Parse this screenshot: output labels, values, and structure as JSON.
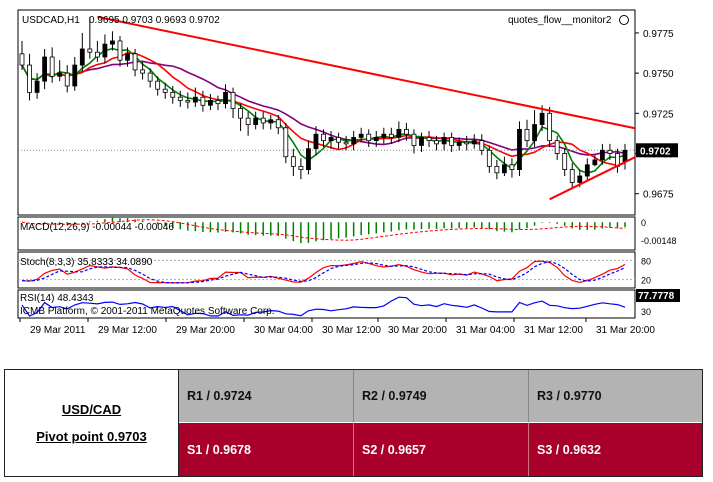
{
  "header": {
    "symbol": "USDCAD,H1",
    "ohlc": "0.9695 0.9703 0.9693 0.9702",
    "indicator_label": "quotes_flow__monitor2",
    "copyright": "ICMB Platform, © 2001-2011 MetaQuotes Software Corp."
  },
  "colors": {
    "bull": "#000000",
    "bear": "#ffffff",
    "ma_fast": "#008000",
    "ma_mid": "#ff0000",
    "ma_slow": "#800080",
    "trendline": "#ff0000",
    "macd": "#008000",
    "signal": "#ff0000",
    "stoch_k": "#ff0000",
    "stoch_d": "#0000ff",
    "rsi": "#0000ff",
    "s_bg": "#a8002b",
    "r_bg": "#b3b3b3"
  },
  "chart_data": [
    {
      "type": "candlestick",
      "title": "USDCAD,H1",
      "x_ticks": [
        "29 Mar 2011",
        "29 Mar 12:00",
        "29 Mar 20:00",
        "30 Mar 04:00",
        "30 Mar 12:00",
        "30 Mar 20:00",
        "31 Mar 04:00",
        "31 Mar 12:00",
        "31 Mar 20:00"
      ],
      "y_ticks": [
        "0.9775",
        "0.9750",
        "0.9725",
        "0.9700",
        "0.9675"
      ],
      "ylim": [
        0.9663,
        0.9788
      ],
      "current_price": "0.9702",
      "close": [
        0.9755,
        0.9738,
        0.9745,
        0.976,
        0.9748,
        0.975,
        0.9742,
        0.9755,
        0.9765,
        0.9763,
        0.976,
        0.9768,
        0.977,
        0.9758,
        0.9762,
        0.9752,
        0.975,
        0.9745,
        0.974,
        0.9738,
        0.9735,
        0.9733,
        0.9732,
        0.9735,
        0.973,
        0.9733,
        0.9731,
        0.9738,
        0.9728,
        0.9722,
        0.9718,
        0.9722,
        0.9719,
        0.9721,
        0.9716,
        0.9698,
        0.9692,
        0.969,
        0.9703,
        0.9712,
        0.9708,
        0.971,
        0.9707,
        0.9706,
        0.971,
        0.9712,
        0.9708,
        0.971,
        0.9712,
        0.971,
        0.9715,
        0.9712,
        0.9705,
        0.971,
        0.9708,
        0.9706,
        0.971,
        0.9705,
        0.9707,
        0.9706,
        0.9708,
        0.9702,
        0.9692,
        0.9688,
        0.9693,
        0.969,
        0.9715,
        0.9708,
        0.9718,
        0.9725,
        0.9708,
        0.97,
        0.969,
        0.9682,
        0.9686,
        0.9693,
        0.9696,
        0.9702,
        0.97,
        0.9692,
        0.9702
      ],
      "open": [
        0.9762,
        0.9755,
        0.9738,
        0.9745,
        0.976,
        0.9748,
        0.975,
        0.9742,
        0.9755,
        0.9765,
        0.9763,
        0.976,
        0.9768,
        0.977,
        0.9758,
        0.9762,
        0.9752,
        0.975,
        0.9745,
        0.974,
        0.9738,
        0.9735,
        0.9733,
        0.9732,
        0.9735,
        0.973,
        0.9733,
        0.9731,
        0.9738,
        0.9728,
        0.9722,
        0.9718,
        0.9722,
        0.9719,
        0.9721,
        0.9716,
        0.9698,
        0.9692,
        0.969,
        0.9703,
        0.9712,
        0.9708,
        0.971,
        0.9707,
        0.9706,
        0.971,
        0.9712,
        0.9708,
        0.971,
        0.9712,
        0.971,
        0.9715,
        0.9712,
        0.9705,
        0.971,
        0.9708,
        0.9706,
        0.971,
        0.9705,
        0.9707,
        0.9706,
        0.9708,
        0.9702,
        0.9692,
        0.9688,
        0.9693,
        0.969,
        0.9715,
        0.9708,
        0.9718,
        0.9725,
        0.9708,
        0.97,
        0.969,
        0.9682,
        0.9686,
        0.9693,
        0.9696,
        0.9702,
        0.97,
        0.9695
      ],
      "high": [
        0.977,
        0.9762,
        0.975,
        0.9765,
        0.9766,
        0.9758,
        0.9755,
        0.976,
        0.9775,
        0.9785,
        0.977,
        0.9774,
        0.9776,
        0.9773,
        0.9766,
        0.9765,
        0.9757,
        0.9753,
        0.9748,
        0.9744,
        0.9742,
        0.9739,
        0.9738,
        0.9741,
        0.9739,
        0.9737,
        0.9736,
        0.9743,
        0.9741,
        0.9731,
        0.9726,
        0.9726,
        0.9726,
        0.9724,
        0.9724,
        0.9719,
        0.9703,
        0.9697,
        0.9708,
        0.9717,
        0.9715,
        0.9714,
        0.9713,
        0.9711,
        0.9714,
        0.9716,
        0.9715,
        0.9714,
        0.9716,
        0.9716,
        0.972,
        0.9719,
        0.9715,
        0.9713,
        0.9714,
        0.9711,
        0.9713,
        0.9713,
        0.971,
        0.9711,
        0.9712,
        0.9712,
        0.9705,
        0.9696,
        0.9698,
        0.9697,
        0.972,
        0.9721,
        0.9727,
        0.973,
        0.9729,
        0.9711,
        0.9703,
        0.9694,
        0.969,
        0.9697,
        0.9699,
        0.9706,
        0.9706,
        0.9703,
        0.9706
      ],
      "low": [
        0.9752,
        0.9733,
        0.9734,
        0.974,
        0.9744,
        0.9745,
        0.9738,
        0.9739,
        0.9751,
        0.9759,
        0.9757,
        0.9756,
        0.9764,
        0.9754,
        0.9754,
        0.9748,
        0.9746,
        0.9741,
        0.9736,
        0.9734,
        0.9731,
        0.9729,
        0.9728,
        0.9729,
        0.9726,
        0.9727,
        0.9727,
        0.9728,
        0.9722,
        0.9714,
        0.9711,
        0.9715,
        0.9715,
        0.9715,
        0.9712,
        0.9694,
        0.9686,
        0.9684,
        0.9687,
        0.9699,
        0.9704,
        0.9703,
        0.9703,
        0.9702,
        0.9702,
        0.9707,
        0.9704,
        0.9704,
        0.9706,
        0.9706,
        0.9707,
        0.9708,
        0.97,
        0.9701,
        0.9704,
        0.9702,
        0.9702,
        0.9701,
        0.9702,
        0.9702,
        0.9703,
        0.9699,
        0.9688,
        0.9684,
        0.9686,
        0.9685,
        0.9686,
        0.9704,
        0.9704,
        0.9714,
        0.9704,
        0.9696,
        0.9686,
        0.9678,
        0.9679,
        0.9683,
        0.9692,
        0.9693,
        0.9696,
        0.9688,
        0.969
      ]
    },
    {
      "type": "bar",
      "title": "MACD(12,26,9) -0.00044 -0.00046",
      "y_ticks": [
        "0",
        "-0.00148"
      ],
      "ylim": [
        -0.0016,
        0.0002
      ]
    },
    {
      "type": "line",
      "title": "Stoch(8,3,3) 35.8333 34.0890",
      "y_ticks": [
        "80",
        "20"
      ],
      "ylim": [
        0,
        100
      ]
    },
    {
      "type": "line",
      "title": "RSI(14) 48.4343",
      "y_ticks": [
        "77.7778",
        "30"
      ],
      "ylim": [
        20,
        85
      ]
    }
  ],
  "pivots": {
    "pair": "USD/CAD",
    "pivot": "Pivot point 0.9703",
    "r1": "R1 / 0.9724",
    "r2": "R2 / 0.9749",
    "r3": "R3 / 0.9770",
    "s1": "S1 / 0.9678",
    "s2": "S2 / 0.9657",
    "s3": "S3 / 0.9632"
  }
}
